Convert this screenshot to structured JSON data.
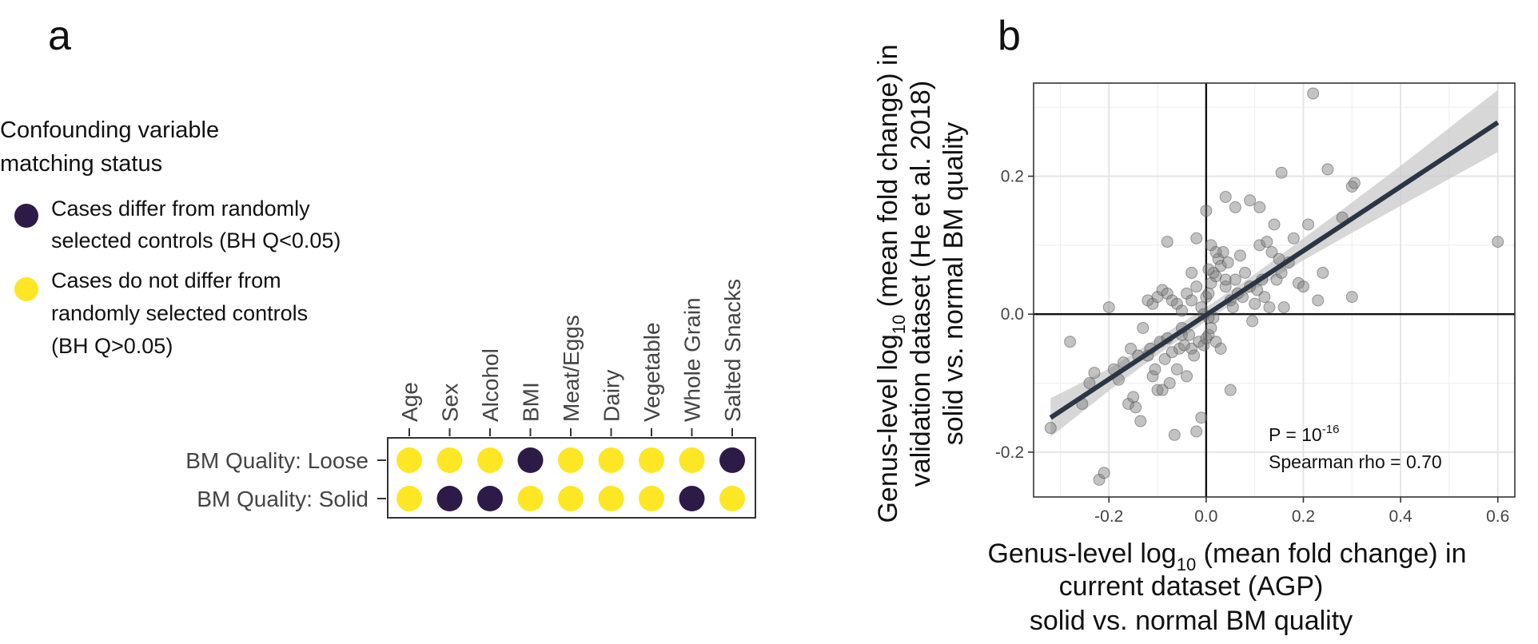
{
  "panel_a": {
    "letter": "a",
    "legend": {
      "title_line1": "Confounding variable",
      "title_line2": "matching status",
      "differ": {
        "line1": "Cases differ from randomly",
        "line2": "selected controls (BH Q<0.05)",
        "color": "#2e1a47"
      },
      "no_differ": {
        "line1": "Cases do not differ from",
        "line2": "randomly selected controls",
        "line3": "(BH Q>0.05)",
        "color": "#fde725"
      }
    },
    "chart_data": {
      "type": "table",
      "columns": [
        "Age",
        "Sex",
        "Alcohol",
        "BMI",
        "Meat/Eggs",
        "Dairy",
        "Vegetable",
        "Whole Grain",
        "Salted Snacks"
      ],
      "rows": [
        {
          "label": "BM Quality: Loose",
          "differ": [
            false,
            false,
            false,
            true,
            false,
            false,
            false,
            false,
            true
          ]
        },
        {
          "label": "BM Quality: Solid",
          "differ": [
            false,
            true,
            true,
            false,
            false,
            false,
            false,
            true,
            false
          ]
        }
      ]
    }
  },
  "panel_b": {
    "letter": "b",
    "chart_data": {
      "type": "scatter",
      "xlim": [
        -0.355,
        0.635
      ],
      "ylim": [
        -0.265,
        0.335
      ],
      "xticks": [
        -0.2,
        0.0,
        0.2,
        0.4,
        0.6
      ],
      "xtick_labels": [
        "-0.2",
        "0.0",
        "0.2",
        "0.4",
        "0.6"
      ],
      "yticks": [
        -0.2,
        0.0,
        0.2
      ],
      "ytick_labels": [
        "-0.2",
        "0.0",
        "0.2"
      ],
      "xlabel": {
        "pre": "Genus-level log",
        "sub": "10",
        "post": " (mean fold change) in",
        "line2": "current dataset (AGP)",
        "line3": "solid vs. normal BM quality"
      },
      "ylabel": {
        "pre": "Genus-level log",
        "sub": "10",
        "post": " (mean fold change) in",
        "line2": "validation dataset (He et al. 2018)",
        "line3": "solid vs. normal BM quality"
      },
      "annotation": {
        "p_pre": "P = 10",
        "p_exp": "-16",
        "rho": "Spearman rho = 0.70"
      },
      "fit": {
        "x": [
          -0.32,
          0.6
        ],
        "y": [
          -0.15,
          0.278
        ]
      },
      "band": [
        {
          "x": -0.32,
          "lo": -0.178,
          "hi": -0.122
        },
        {
          "x": -0.2,
          "lo": -0.111,
          "hi": -0.079
        },
        {
          "x": -0.1,
          "lo": -0.059,
          "hi": -0.035
        },
        {
          "x": 0.0,
          "lo": -0.01,
          "hi": 0.01
        },
        {
          "x": 0.1,
          "lo": 0.036,
          "hi": 0.058
        },
        {
          "x": 0.2,
          "lo": 0.078,
          "hi": 0.11
        },
        {
          "x": 0.3,
          "lo": 0.118,
          "hi": 0.162
        },
        {
          "x": 0.4,
          "lo": 0.157,
          "hi": 0.215
        },
        {
          "x": 0.5,
          "lo": 0.196,
          "hi": 0.27
        },
        {
          "x": 0.6,
          "lo": 0.235,
          "hi": 0.325
        }
      ],
      "points": [
        [
          -0.32,
          -0.165
        ],
        [
          -0.28,
          -0.04
        ],
        [
          -0.255,
          -0.13
        ],
        [
          -0.24,
          -0.1
        ],
        [
          -0.23,
          -0.085
        ],
        [
          -0.22,
          -0.24
        ],
        [
          -0.21,
          -0.23
        ],
        [
          -0.2,
          0.01
        ],
        [
          -0.19,
          -0.08
        ],
        [
          -0.18,
          -0.095
        ],
        [
          -0.17,
          -0.07
        ],
        [
          -0.16,
          -0.13
        ],
        [
          -0.155,
          -0.05
        ],
        [
          -0.15,
          -0.12
        ],
        [
          -0.145,
          -0.135
        ],
        [
          -0.14,
          -0.06
        ],
        [
          -0.135,
          -0.155
        ],
        [
          -0.13,
          -0.02
        ],
        [
          -0.12,
          -0.06
        ],
        [
          -0.115,
          -0.05
        ],
        [
          -0.11,
          -0.09
        ],
        [
          -0.105,
          -0.08
        ],
        [
          -0.1,
          -0.11
        ],
        [
          -0.095,
          -0.04
        ],
        [
          -0.09,
          -0.11
        ],
        [
          -0.085,
          -0.065
        ],
        [
          -0.08,
          -0.035
        ],
        [
          -0.075,
          -0.1
        ],
        [
          -0.07,
          -0.055
        ],
        [
          -0.065,
          -0.175
        ],
        [
          -0.06,
          -0.08
        ],
        [
          -0.055,
          -0.05
        ],
        [
          -0.05,
          -0.03
        ],
        [
          -0.045,
          -0.045
        ],
        [
          -0.04,
          -0.09
        ],
        [
          -0.035,
          -0.03
        ],
        [
          -0.03,
          -0.05
        ],
        [
          -0.025,
          -0.06
        ],
        [
          -0.02,
          -0.17
        ],
        [
          -0.015,
          -0.04
        ],
        [
          -0.01,
          -0.15
        ],
        [
          -0.005,
          -0.045
        ],
        [
          0.0,
          -0.035
        ],
        [
          0.005,
          -0.03
        ],
        [
          0.01,
          -0.02
        ],
        [
          0.015,
          -0.005
        ],
        [
          0.02,
          -0.04
        ],
        [
          -0.12,
          0.02
        ],
        [
          -0.11,
          0.015
        ],
        [
          -0.1,
          0.025
        ],
        [
          -0.09,
          0.035
        ],
        [
          -0.08,
          0.03
        ],
        [
          -0.07,
          0.02
        ],
        [
          -0.06,
          0.015
        ],
        [
          -0.05,
          0.005
        ],
        [
          -0.04,
          0.03
        ],
        [
          -0.03,
          0.02
        ],
        [
          -0.02,
          0.04
        ],
        [
          -0.01,
          0.01
        ],
        [
          0.0,
          0.025
        ],
        [
          0.005,
          0.03
        ],
        [
          0.01,
          0.045
        ],
        [
          0.015,
          0.06
        ],
        [
          0.02,
          0.055
        ],
        [
          0.025,
          0.08
        ],
        [
          0.03,
          0.07
        ],
        [
          0.035,
          0.09
        ],
        [
          0.04,
          0.04
        ],
        [
          0.045,
          0.075
        ],
        [
          0.05,
          0.02
        ],
        [
          0.055,
          0.01
        ],
        [
          0.06,
          0.05
        ],
        [
          0.065,
          0.03
        ],
        [
          0.07,
          0.085
        ],
        [
          0.075,
          0.025
        ],
        [
          0.08,
          0.06
        ],
        [
          0.09,
          0.04
        ],
        [
          0.095,
          -0.01
        ],
        [
          0.1,
          0.015
        ],
        [
          0.105,
          0.035
        ],
        [
          0.11,
          0.1
        ],
        [
          0.115,
          0.05
        ],
        [
          0.12,
          0.025
        ],
        [
          0.13,
          0.01
        ],
        [
          0.135,
          0.09
        ],
        [
          0.14,
          0.13
        ],
        [
          0.145,
          0.05
        ],
        [
          0.15,
          0.08
        ],
        [
          0.155,
          0.06
        ],
        [
          0.16,
          0.01
        ],
        [
          0.17,
          0.075
        ],
        [
          0.18,
          0.11
        ],
        [
          0.19,
          0.045
        ],
        [
          0.2,
          0.04
        ],
        [
          0.21,
          0.13
        ],
        [
          0.22,
          0.32
        ],
        [
          0.23,
          0.02
        ],
        [
          0.24,
          0.06
        ],
        [
          0.25,
          0.21
        ],
        [
          0.28,
          0.14
        ],
        [
          0.3,
          0.185
        ],
        [
          0.305,
          0.19
        ],
        [
          0.3,
          0.025
        ],
        [
          0.6,
          0.105
        ],
        [
          0.04,
          0.17
        ],
        [
          0.06,
          0.155
        ],
        [
          0.09,
          0.165
        ],
        [
          0.11,
          0.155
        ],
        [
          0.125,
          0.105
        ],
        [
          0.155,
          0.205
        ],
        [
          0.01,
          0.1
        ],
        [
          0.02,
          0.09
        ],
        [
          0.0,
          0.15
        ],
        [
          -0.03,
          0.06
        ],
        [
          -0.02,
          0.11
        ],
        [
          0.03,
          -0.05
        ],
        [
          0.05,
          -0.11
        ],
        [
          -0.005,
          0.0
        ],
        [
          0.005,
          -0.005
        ],
        [
          -0.05,
          -0.02
        ],
        [
          -0.08,
          0.105
        ],
        [
          0.005,
          0.065
        ],
        [
          0.04,
          0.05
        ]
      ]
    }
  }
}
